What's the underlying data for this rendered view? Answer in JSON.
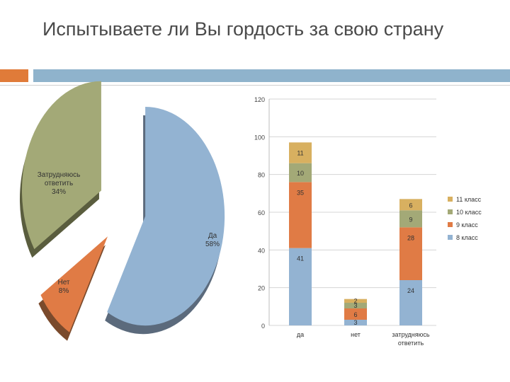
{
  "title": "Испытываете ли Вы гордость за свою страну",
  "colors": {
    "accent_orange": "#e07b39",
    "accent_blue": "#8fb3cc"
  },
  "chart_data": [
    {
      "type": "pie",
      "categories": [
        "Да",
        "Нет",
        "Затрудняюсь ответить"
      ],
      "label_lines": [
        [
          "Да",
          "58%"
        ],
        [
          "Нет",
          "8%"
        ],
        [
          "Затрудняюсь",
          "ответить",
          "34%"
        ]
      ],
      "values": [
        58,
        8,
        34
      ],
      "unit": "%",
      "colors": [
        "#93b3d2",
        "#e07b45",
        "#a3a977"
      ],
      "shadow_colors": [
        "#5b6a7c",
        "#7a4a2c",
        "#5a5d3e"
      ]
    },
    {
      "type": "bar",
      "stacked": true,
      "categories": [
        "да",
        "нет",
        "затрудняюсь ответить"
      ],
      "category_lines": [
        [
          "да"
        ],
        [
          "нет"
        ],
        [
          "затрудняюсь",
          "ответить"
        ]
      ],
      "series": [
        {
          "name": "8 класс",
          "values": [
            41,
            3,
            24
          ],
          "color": "#93b3d2"
        },
        {
          "name": "9 класс",
          "values": [
            35,
            6,
            28
          ],
          "color": "#e07b45"
        },
        {
          "name": "10 класс",
          "values": [
            10,
            3,
            9
          ],
          "color": "#a3a977"
        },
        {
          "name": "11 класс",
          "values": [
            11,
            2,
            6
          ],
          "color": "#d8b060"
        }
      ],
      "legend_order": [
        "11 класс",
        "10 класс",
        "9 класс",
        "8 класс"
      ],
      "ylim": [
        0,
        120
      ],
      "yticks": [
        0,
        20,
        40,
        60,
        80,
        100,
        120
      ],
      "grid": true,
      "legend_position": "right"
    }
  ]
}
